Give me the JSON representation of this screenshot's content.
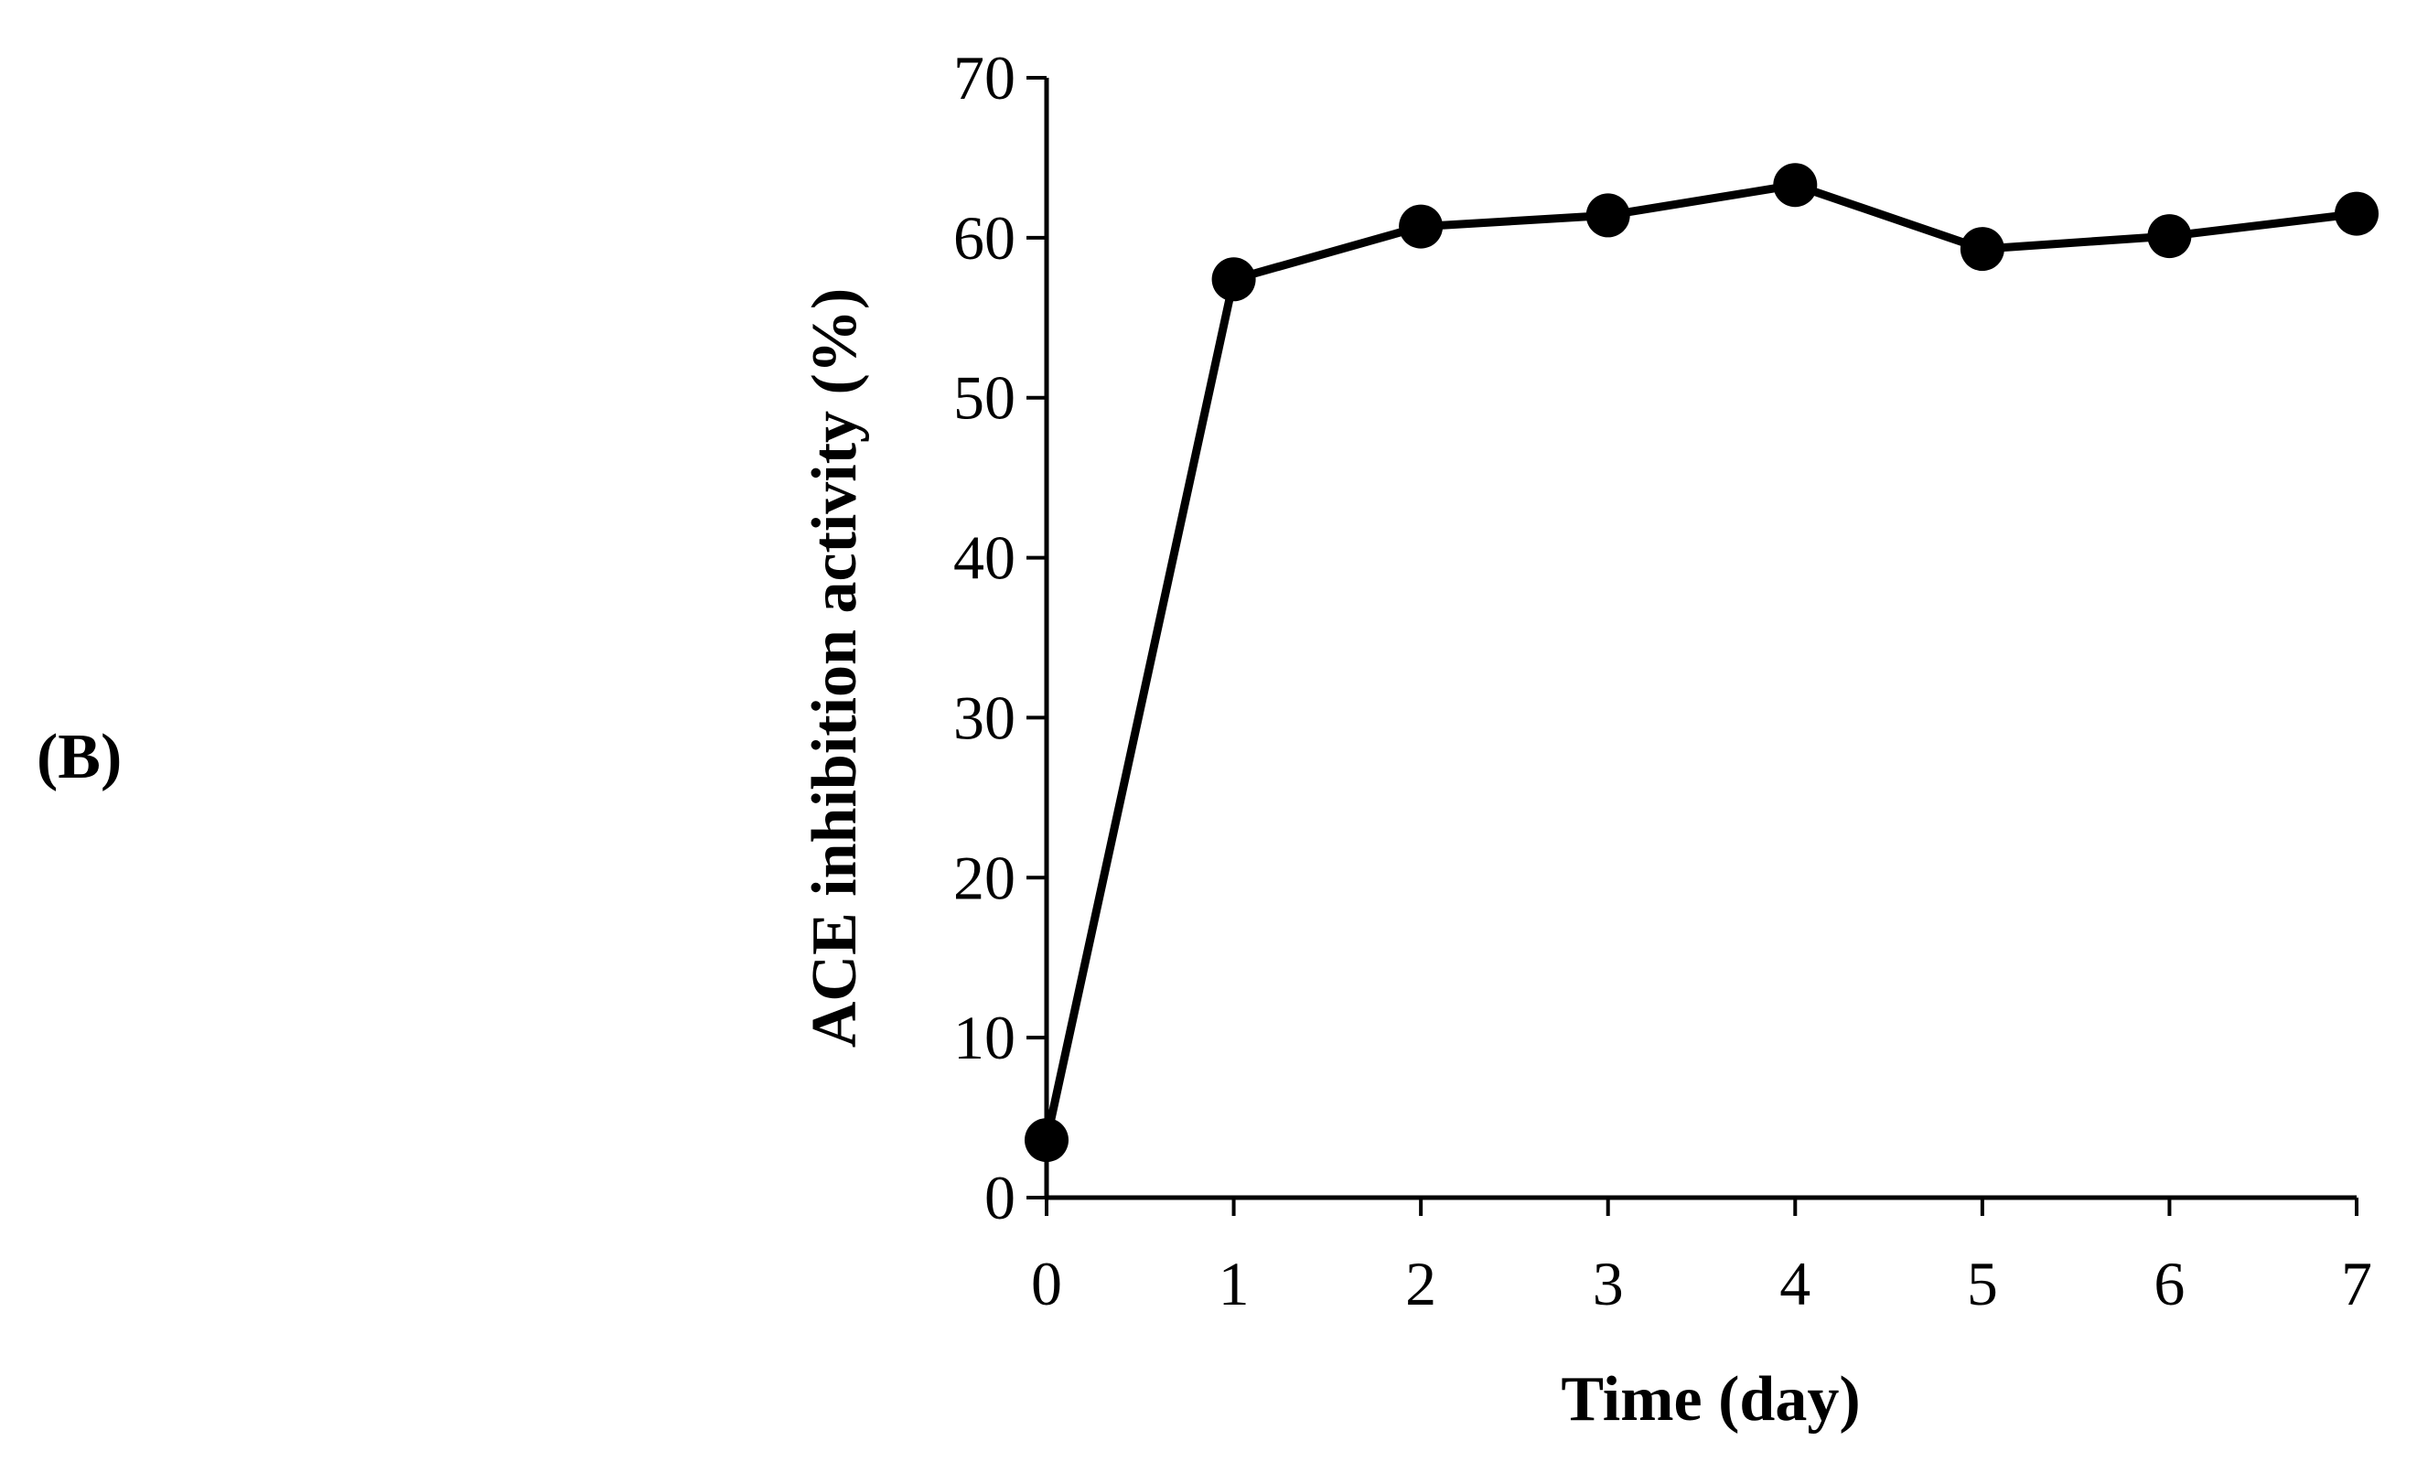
{
  "panel_label": "(B)",
  "chart_data": {
    "type": "line",
    "title": "",
    "xlabel": "Time (day)",
    "ylabel": "ACE inhibition activity  (%)",
    "x": [
      0,
      1,
      2,
      3,
      4,
      5,
      6,
      7
    ],
    "series": [
      {
        "name": "ACE inhibition activity",
        "values": [
          3.6,
          57.4,
          60.7,
          61.4,
          63.3,
          59.3,
          60.1,
          61.5
        ],
        "color": "#000000",
        "marker": "circle"
      }
    ],
    "xlim": [
      0,
      7
    ],
    "ylim": [
      0,
      70
    ],
    "xticks": [
      0,
      1,
      2,
      3,
      4,
      5,
      6,
      7
    ],
    "yticks": [
      0,
      10,
      20,
      30,
      40,
      50,
      60,
      70
    ],
    "xtick_labels": [
      "0",
      "1",
      "2",
      "3",
      "4",
      "5",
      "6",
      "7"
    ],
    "ytick_labels": [
      "0",
      "10",
      "20",
      "30",
      "40",
      "50",
      "60",
      "70"
    ],
    "grid": false,
    "legend": "none"
  }
}
